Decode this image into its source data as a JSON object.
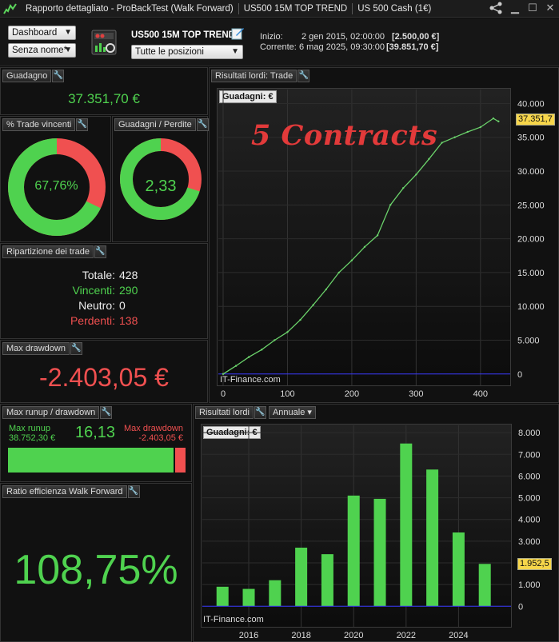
{
  "window": {
    "title": "Rapporto dettagliato - ProBackTest (Walk Forward)",
    "strategy": "US500 15M TOP TREND",
    "instrument": "US 500 Cash (1€)"
  },
  "toolbar": {
    "view_select": "Dashboard",
    "name_select": "Senza nome*",
    "strategy_title": "US500 15M TOP TREND",
    "positions_select": "Tutte le posizioni",
    "start_label": "Inizio:",
    "start_date": "2 gen 2015, 02:00:00",
    "start_value": "[2.500,00 €]",
    "current_label": "Corrente:",
    "current_date": "6 mag 2025, 09:30:00",
    "current_value": "[39.851,70 €]"
  },
  "gain": {
    "title": "Guadagno",
    "value": "37.351,70 €"
  },
  "win_pct": {
    "title": "% Trade vincenti",
    "value": "67,76%",
    "fraction": 0.6776
  },
  "gain_loss": {
    "title": "Guadagni / Perdite",
    "value": "2,33",
    "fraction": 0.7
  },
  "breakdown": {
    "title": "Ripartizione dei trade",
    "total_label": "Totale:",
    "total": "428",
    "win_label": "Vincenti:",
    "win": "290",
    "neutral_label": "Neutro:",
    "neutral": "0",
    "loss_label": "Perdenti:",
    "loss": "138"
  },
  "max_drawdown": {
    "title": "Max drawdown",
    "value": "-2.403,05 €"
  },
  "runup": {
    "title": "Max runup / drawdown",
    "runup_label": "Max runup",
    "runup_value": "38.752,30 €",
    "ratio": "16,13",
    "dd_label": "Max drawdown",
    "dd_value": "-2.403,05 €",
    "runup_fraction": 0.94
  },
  "efficiency": {
    "title": "Ratio efficienza Walk Forward",
    "value": "108,75%"
  },
  "trade_chart": {
    "panel_title": "Risultati lordi: Trade",
    "tag": "Guadagni: €",
    "annotation": "5 Contracts",
    "watermark": "IT-Finance.com",
    "last_value": "37.351,7",
    "colors": {
      "line": "#6bd36b",
      "down": "#f05050",
      "zero": "#3a3aff"
    }
  },
  "annual_chart": {
    "panel_title": "Risultati lordi",
    "period_select": "Annuale",
    "tag": "Guadagni: €",
    "watermark": "IT-Finance.com",
    "last_value": "1.952,5",
    "colors": {
      "bar": "#4fd24f",
      "zero": "#3a3aff"
    }
  },
  "chart_data": [
    {
      "type": "line",
      "x": [
        0,
        20,
        40,
        60,
        80,
        100,
        120,
        140,
        160,
        180,
        200,
        220,
        240,
        260,
        280,
        300,
        320,
        340,
        360,
        380,
        400,
        420,
        428
      ],
      "values": [
        0,
        1200,
        2500,
        3600,
        5000,
        6200,
        8000,
        10200,
        12500,
        15000,
        16800,
        18800,
        20500,
        25000,
        27500,
        29500,
        31800,
        34200,
        35000,
        35800,
        36500,
        37800,
        37351.7
      ],
      "xlim": [
        0,
        440
      ],
      "ylim": [
        -500,
        41000
      ],
      "x_ticks": [
        0,
        100,
        200,
        300,
        400
      ],
      "y_ticks": [
        0,
        5000,
        10000,
        15000,
        20000,
        25000,
        30000,
        35000,
        40000
      ],
      "y_tick_labels": [
        "0",
        "5.000",
        "10.000",
        "15.000",
        "20.000",
        "25.000",
        "30.000",
        "35.000",
        "40.000"
      ]
    },
    {
      "type": "bar",
      "x": [
        2015,
        2016,
        2017,
        2018,
        2019,
        2020,
        2021,
        2022,
        2023,
        2024,
        2025
      ],
      "values": [
        900,
        800,
        1200,
        2700,
        2400,
        5100,
        4950,
        7500,
        6300,
        3400,
        1952.5
      ],
      "xlim": [
        2014.2,
        2026
      ],
      "ylim": [
        -100,
        8300
      ],
      "x_ticks": [
        2016,
        2018,
        2020,
        2022,
        2024
      ],
      "y_ticks": [
        0,
        1000,
        2000,
        3000,
        4000,
        5000,
        6000,
        7000,
        8000
      ],
      "y_tick_labels": [
        "0",
        "1.000",
        "2.000",
        "3.000",
        "4.000",
        "5.000",
        "6.000",
        "7.000",
        "8.000"
      ]
    }
  ]
}
